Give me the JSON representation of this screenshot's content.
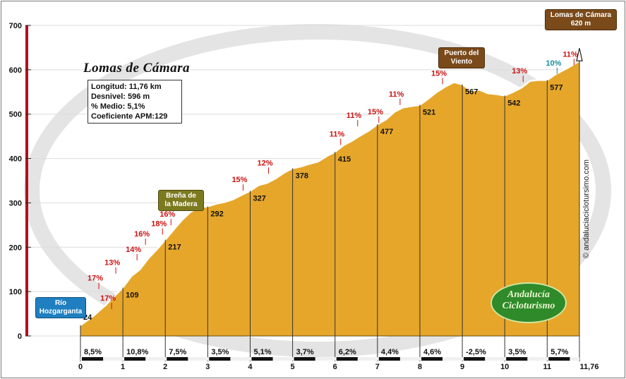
{
  "route": {
    "title": "Lomas de Cámara",
    "info": [
      {
        "label": "Longitud:",
        "value": "11,76 km"
      },
      {
        "label": "Desnivel:",
        "value": "596 m"
      },
      {
        "label": "% Medio:",
        "value": "5,1%"
      },
      {
        "label": "Coeficiente APM:",
        "value": "129"
      }
    ]
  },
  "landmarks": {
    "start": {
      "line1": "Río",
      "line2": "Hozgarganta"
    },
    "brena": {
      "line1": "Breña de",
      "line2": "la Madera"
    },
    "puerto": {
      "line1": "Puerto del",
      "line2": "Viento"
    },
    "summit": {
      "line1": "Lomas de Cámara",
      "line2": "620 m"
    }
  },
  "branding": {
    "site": "© andaluciaciclotursimo.com",
    "logo_line1": "Andalucía",
    "logo_line2": "Cicloturismo"
  },
  "chart_data": {
    "type": "area",
    "xlim": [
      0,
      11.76
    ],
    "ylim": [
      0,
      700
    ],
    "x_ticks": [
      0,
      1,
      2,
      3,
      4,
      5,
      6,
      7,
      8,
      9,
      10,
      11,
      11.76
    ],
    "x_tick_labels": [
      "0",
      "1",
      "2",
      "3",
      "4",
      "5",
      "6",
      "7",
      "8",
      "9",
      "10",
      "11",
      "11,76"
    ],
    "y_ticks": [
      0,
      100,
      200,
      300,
      400,
      500,
      600,
      700
    ],
    "y_tick_labels": [
      "0",
      "100",
      "200",
      "300",
      "400",
      "500",
      "600",
      "700"
    ],
    "profile": [
      [
        0,
        24
      ],
      [
        0.3,
        45
      ],
      [
        0.6,
        70
      ],
      [
        0.8,
        90
      ],
      [
        1.0,
        109
      ],
      [
        1.2,
        135
      ],
      [
        1.4,
        150
      ],
      [
        1.6,
        175
      ],
      [
        1.8,
        195
      ],
      [
        2.0,
        217
      ],
      [
        2.2,
        240
      ],
      [
        2.4,
        262
      ],
      [
        2.6,
        280
      ],
      [
        2.8,
        290
      ],
      [
        3.0,
        292
      ],
      [
        3.2,
        298
      ],
      [
        3.4,
        302
      ],
      [
        3.6,
        308
      ],
      [
        3.8,
        318
      ],
      [
        4.0,
        327
      ],
      [
        4.2,
        340
      ],
      [
        4.4,
        345
      ],
      [
        4.6,
        355
      ],
      [
        4.8,
        368
      ],
      [
        5.0,
        378
      ],
      [
        5.2,
        382
      ],
      [
        5.4,
        388
      ],
      [
        5.6,
        393
      ],
      [
        5.8,
        405
      ],
      [
        6.0,
        415
      ],
      [
        6.2,
        430
      ],
      [
        6.4,
        440
      ],
      [
        6.6,
        452
      ],
      [
        6.8,
        463
      ],
      [
        7.0,
        477
      ],
      [
        7.2,
        488
      ],
      [
        7.4,
        505
      ],
      [
        7.6,
        515
      ],
      [
        7.8,
        518
      ],
      [
        8.0,
        521
      ],
      [
        8.2,
        535
      ],
      [
        8.4,
        550
      ],
      [
        8.6,
        562
      ],
      [
        8.8,
        572
      ],
      [
        9.0,
        567
      ],
      [
        9.2,
        553
      ],
      [
        9.4,
        555
      ],
      [
        9.6,
        547
      ],
      [
        9.8,
        545
      ],
      [
        10.0,
        542
      ],
      [
        10.2,
        550
      ],
      [
        10.4,
        560
      ],
      [
        10.6,
        575
      ],
      [
        10.8,
        577
      ],
      [
        11.0,
        577
      ],
      [
        11.2,
        590
      ],
      [
        11.5,
        605
      ],
      [
        11.76,
        620
      ]
    ],
    "km_altitude_labels": [
      {
        "x": 0,
        "label": "24"
      },
      {
        "x": 1,
        "label": "109"
      },
      {
        "x": 2,
        "label": "217"
      },
      {
        "x": 3,
        "label": "292"
      },
      {
        "x": 4,
        "label": "327"
      },
      {
        "x": 5,
        "label": "378"
      },
      {
        "x": 6,
        "label": "415"
      },
      {
        "x": 7,
        "label": "477"
      },
      {
        "x": 8,
        "label": "521"
      },
      {
        "x": 9,
        "label": "567"
      },
      {
        "x": 10,
        "label": "542"
      },
      {
        "x": 11,
        "label": "577"
      }
    ],
    "segment_gradients": [
      "8,5%",
      "10,8%",
      "7,5%",
      "3,5%",
      "5,1%",
      "3,7%",
      "6,2%",
      "4,4%",
      "4,6%",
      "-2,5%",
      "3,5%",
      "5,7%"
    ],
    "slope_annotations": [
      {
        "x": 0.7,
        "y": 70,
        "label": "17%",
        "color": "#cc1111"
      },
      {
        "x": 0.4,
        "y": 115,
        "label": "17%",
        "color": "#cc1111"
      },
      {
        "x": 0.8,
        "y": 150,
        "label": "13%",
        "color": "#cc1111"
      },
      {
        "x": 1.3,
        "y": 180,
        "label": "14%",
        "color": "#cc1111"
      },
      {
        "x": 1.5,
        "y": 215,
        "label": "16%",
        "color": "#cc1111"
      },
      {
        "x": 1.9,
        "y": 238,
        "label": "18%",
        "color": "#cc1111"
      },
      {
        "x": 2.1,
        "y": 259,
        "label": "16%",
        "color": "#cc1111"
      },
      {
        "x": 3.8,
        "y": 337,
        "label": "15%",
        "color": "#cc1111"
      },
      {
        "x": 4.4,
        "y": 375,
        "label": "12%",
        "color": "#cc1111"
      },
      {
        "x": 6.1,
        "y": 440,
        "label": "11%",
        "color": "#cc1111"
      },
      {
        "x": 6.5,
        "y": 482,
        "label": "11%",
        "color": "#cc1111"
      },
      {
        "x": 7.0,
        "y": 490,
        "label": "15%",
        "color": "#cc1111"
      },
      {
        "x": 7.5,
        "y": 530,
        "label": "11%",
        "color": "#cc1111"
      },
      {
        "x": 8.5,
        "y": 577,
        "label": "15%",
        "color": "#cc1111"
      },
      {
        "x": 10.4,
        "y": 582,
        "label": "13%",
        "color": "#cc1111"
      },
      {
        "x": 11.2,
        "y": 600,
        "label": "10%",
        "color": "#1a8a9a"
      },
      {
        "x": 11.6,
        "y": 620,
        "label": "11%",
        "color": "#cc1111"
      }
    ],
    "colors": {
      "fill": "#e6a62a",
      "fill_dark": "#b07818",
      "axis_red": "#b01020",
      "grid": "#444444"
    }
  }
}
